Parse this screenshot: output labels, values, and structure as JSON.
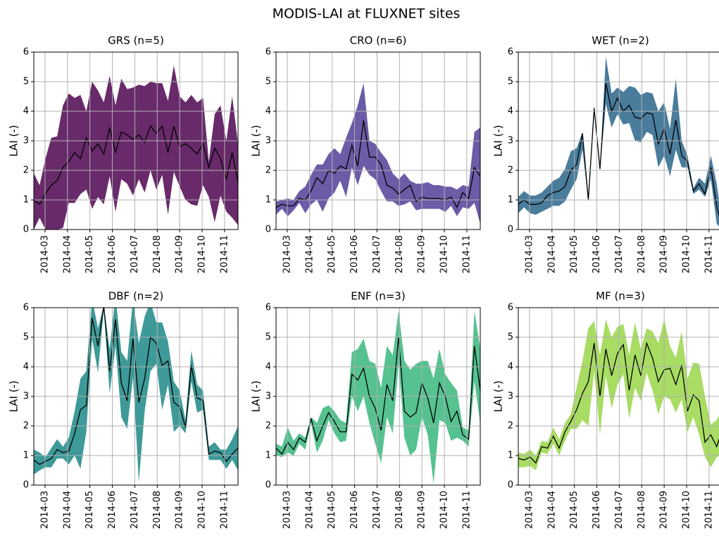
{
  "title": "MODIS-LAI at FLUXNET sites",
  "chart_data": [
    {
      "type": "line",
      "title": "GRS (n=5)",
      "y_label": "LAI (-)",
      "color": "#682a6a",
      "line_color": "#000000",
      "x": [
        2.5,
        2.76,
        3.02,
        3.28,
        3.54,
        3.8,
        4.06,
        4.32,
        4.58,
        4.84,
        5.1,
        5.36,
        5.62,
        5.88,
        6.14,
        6.4,
        6.66,
        6.92,
        7.18,
        7.44,
        7.7,
        7.96,
        8.22,
        8.48,
        8.74,
        9.0,
        9.26,
        9.52,
        9.78,
        10.04,
        10.3,
        10.56,
        10.82,
        11.08,
        11.34,
        11.6
      ],
      "mean": [
        1.0,
        0.85,
        1.2,
        1.5,
        1.65,
        2.1,
        2.3,
        2.6,
        2.4,
        3.1,
        2.65,
        2.9,
        2.55,
        3.45,
        2.6,
        3.3,
        3.2,
        3.05,
        3.2,
        2.95,
        3.5,
        3.25,
        3.5,
        2.6,
        3.5,
        2.8,
        2.9,
        2.75,
        2.55,
        2.9,
        2.1,
        2.75,
        2.4,
        1.7,
        2.6,
        1.6
      ],
      "upper": [
        1.9,
        1.5,
        2.4,
        3.1,
        3.15,
        4.2,
        4.6,
        4.45,
        4.55,
        4.0,
        5.0,
        4.7,
        4.3,
        5.2,
        4.2,
        5.1,
        4.75,
        4.8,
        4.9,
        4.85,
        5.0,
        4.95,
        4.95,
        4.35,
        5.55,
        4.5,
        4.3,
        4.55,
        4.3,
        4.45,
        2.3,
        3.9,
        4.2,
        3.0,
        4.5,
        2.9
      ],
      "lower": [
        0,
        0.4,
        0,
        -0.1,
        0,
        0.05,
        0.9,
        0.9,
        1.2,
        1.35,
        0.7,
        1.1,
        0.85,
        1.8,
        0.6,
        1.7,
        1.55,
        1.15,
        1.7,
        1.25,
        2.0,
        1.35,
        1.85,
        0.5,
        1.95,
        1.45,
        1.0,
        0.85,
        0.8,
        1.5,
        1.1,
        0.25,
        1.15,
        0.6,
        0.4,
        0.15
      ],
      "xlim": [
        2.5,
        11.6
      ],
      "ylim": [
        0,
        6
      ],
      "yticks": [
        0,
        1,
        2,
        3,
        4,
        5,
        6
      ],
      "xticks": [
        {
          "value": 3,
          "label": "2014-03"
        },
        {
          "value": 4,
          "label": "2014-04"
        },
        {
          "value": 5,
          "label": "2014-05"
        },
        {
          "value": 6,
          "label": "2014-06"
        },
        {
          "value": 7,
          "label": "2014-07"
        },
        {
          "value": 8,
          "label": "2014-08"
        },
        {
          "value": 9,
          "label": "2014-09"
        },
        {
          "value": 10,
          "label": "2014-10"
        },
        {
          "value": 11,
          "label": "2014-11"
        }
      ],
      "grid": true
    },
    {
      "type": "line",
      "title": "CRO (n=6)",
      "y_label": "LAI (-)",
      "color": "#6c5ba7",
      "line_color": "#000000",
      "x": [
        2.5,
        2.76,
        3.02,
        3.28,
        3.54,
        3.8,
        4.06,
        4.32,
        4.58,
        4.84,
        5.1,
        5.36,
        5.62,
        5.88,
        6.14,
        6.4,
        6.66,
        6.92,
        7.18,
        7.44,
        7.7,
        7.96,
        8.22,
        8.48,
        8.74,
        9.0,
        9.26,
        9.52,
        9.78,
        10.04,
        10.3,
        10.56,
        10.82,
        11.08,
        11.34,
        11.6
      ],
      "mean": [
        0.75,
        0.85,
        0.8,
        0.8,
        1.05,
        1.0,
        1.3,
        1.75,
        1.55,
        2.0,
        1.9,
        2.15,
        2.05,
        2.85,
        2.15,
        3.7,
        2.45,
        2.45,
        2.2,
        1.5,
        1.4,
        1.2,
        1.35,
        1.5,
        0.95,
        1.1,
        1.05,
        1.05,
        1.05,
        1.0,
        1.1,
        0.75,
        1.25,
        1.05,
        2.1,
        1.8
      ],
      "upper": [
        0.95,
        1.0,
        1.05,
        1.0,
        1.3,
        1.45,
        1.85,
        2.2,
        2.2,
        2.55,
        2.75,
        2.55,
        3.1,
        3.6,
        4.2,
        4.95,
        3.0,
        2.9,
        2.6,
        2.35,
        1.9,
        1.7,
        1.9,
        1.65,
        1.55,
        1.55,
        1.6,
        1.5,
        1.5,
        1.45,
        1.45,
        1.35,
        1.5,
        1.45,
        3.3,
        3.45
      ],
      "lower": [
        0.5,
        0.7,
        0.45,
        0.65,
        0.9,
        0.55,
        0.85,
        1.0,
        0.6,
        1.05,
        1.25,
        1.65,
        1.1,
        2.1,
        1.5,
        2.15,
        1.85,
        1.7,
        1.3,
        0.95,
        0.95,
        0.8,
        0.85,
        0.95,
        0.65,
        0.7,
        0.7,
        0.7,
        0.7,
        0.6,
        0.8,
        0.45,
        0.75,
        0.7,
        0.9,
        0.2
      ],
      "xlim": [
        2.5,
        11.6
      ],
      "ylim": [
        0,
        6
      ],
      "yticks": [
        0,
        1,
        2,
        3,
        4,
        5,
        6
      ],
      "xticks": [
        {
          "value": 3,
          "label": "2014-03"
        },
        {
          "value": 4,
          "label": "2014-04"
        },
        {
          "value": 5,
          "label": "2014-05"
        },
        {
          "value": 6,
          "label": "2014-06"
        },
        {
          "value": 7,
          "label": "2014-07"
        },
        {
          "value": 8,
          "label": "2014-08"
        },
        {
          "value": 9,
          "label": "2014-09"
        },
        {
          "value": 10,
          "label": "2014-10"
        },
        {
          "value": 11,
          "label": "2014-11"
        }
      ],
      "grid": true
    },
    {
      "type": "line",
      "title": "WET (n=2)",
      "y_label": "LAI (-)",
      "color": "#4a7c9c",
      "line_color": "#000000",
      "x": [
        2.5,
        2.76,
        3.02,
        3.28,
        3.54,
        3.8,
        4.06,
        4.32,
        4.58,
        4.84,
        5.1,
        5.36,
        5.62,
        5.88,
        6.14,
        6.4,
        6.66,
        6.92,
        7.18,
        7.44,
        7.7,
        7.96,
        8.22,
        8.48,
        8.74,
        9.0,
        9.26,
        9.52,
        9.78,
        10.04,
        10.3,
        10.56,
        10.82,
        11.08,
        11.34,
        11.6
      ],
      "mean": [
        0.85,
        1.0,
        0.85,
        0.85,
        0.9,
        1.15,
        1.25,
        1.3,
        1.45,
        2.0,
        2.2,
        3.25,
        1.0,
        4.1,
        2.05,
        4.95,
        4.0,
        4.45,
        4.0,
        4.2,
        3.8,
        3.75,
        3.95,
        3.9,
        2.9,
        3.4,
        2.55,
        3.7,
        2.5,
        2.3,
        1.3,
        1.55,
        1.2,
        2.1,
        0.8,
        0.05
      ],
      "upper": [
        1.1,
        1.3,
        1.15,
        1.15,
        1.25,
        1.45,
        1.65,
        1.75,
        2.05,
        2.65,
        2.75,
        3.3,
        1.05,
        4.2,
        2.1,
        5.85,
        4.6,
        4.8,
        4.65,
        4.85,
        4.8,
        4.55,
        4.65,
        4.6,
        4.0,
        4.3,
        3.4,
        5.1,
        3.0,
        2.5,
        1.4,
        1.75,
        1.55,
        2.5,
        1.55,
        0.15
      ],
      "lower": [
        0.55,
        0.75,
        0.55,
        0.5,
        0.6,
        0.7,
        0.8,
        0.8,
        0.95,
        1.35,
        1.7,
        2.7,
        0.95,
        4.0,
        2.0,
        4.25,
        3.45,
        3.9,
        3.55,
        3.6,
        3.0,
        2.95,
        3.3,
        3.2,
        2.1,
        2.5,
        1.8,
        2.7,
        2.1,
        2.1,
        1.2,
        1.35,
        1.1,
        1.7,
        0.2,
        -0.05
      ],
      "xlim": [
        2.5,
        11.6
      ],
      "ylim": [
        0,
        6
      ],
      "yticks": [
        0,
        1,
        2,
        3,
        4,
        5,
        6
      ],
      "xticks": [
        {
          "value": 3,
          "label": "2014-03"
        },
        {
          "value": 4,
          "label": "2014-04"
        },
        {
          "value": 5,
          "label": "2014-05"
        },
        {
          "value": 6,
          "label": "2014-06"
        },
        {
          "value": 7,
          "label": "2014-07"
        },
        {
          "value": 8,
          "label": "2014-08"
        },
        {
          "value": 9,
          "label": "2014-09"
        },
        {
          "value": 10,
          "label": "2014-10"
        },
        {
          "value": 11,
          "label": "2014-11"
        }
      ],
      "grid": true
    },
    {
      "type": "line",
      "title": "DBF (n=2)",
      "y_label": "LAI (-)",
      "color": "#3d9a98",
      "line_color": "#000000",
      "x": [
        2.5,
        2.76,
        3.02,
        3.28,
        3.54,
        3.8,
        4.06,
        4.32,
        4.58,
        4.84,
        5.1,
        5.36,
        5.62,
        5.88,
        6.14,
        6.4,
        6.66,
        6.92,
        7.18,
        7.44,
        7.7,
        7.96,
        8.22,
        8.48,
        8.74,
        9.0,
        9.26,
        9.52,
        9.78,
        10.04,
        10.3,
        10.56,
        10.82,
        11.08,
        11.34,
        11.6
      ],
      "mean": [
        0.85,
        0.7,
        0.8,
        0.9,
        1.2,
        1.1,
        1.15,
        1.75,
        2.55,
        2.7,
        5.65,
        4.7,
        6.05,
        3.85,
        5.6,
        3.45,
        2.85,
        4.95,
        2.8,
        3.6,
        5.0,
        4.8,
        4.05,
        4.2,
        2.8,
        2.65,
        1.95,
        4.05,
        2.95,
        2.85,
        1.05,
        1.15,
        1.1,
        0.8,
        1.05,
        1.25
      ],
      "upper": [
        1.2,
        1.1,
        0.95,
        1.25,
        1.55,
        1.3,
        1.6,
        2.5,
        3.6,
        3.85,
        6.3,
        5.3,
        6.1,
        4.6,
        6.4,
        4.5,
        4.2,
        6.3,
        4.8,
        5.7,
        6.2,
        5.5,
        5.5,
        4.85,
        3.5,
        3.2,
        2.2,
        4.55,
        3.4,
        3.2,
        1.3,
        1.45,
        1.2,
        1.2,
        1.55,
        2.0
      ],
      "lower": [
        0.35,
        0.5,
        0.6,
        0.6,
        0.9,
        0.9,
        0.7,
        1.0,
        0.55,
        1.8,
        4.95,
        3.8,
        5.95,
        3.1,
        4.7,
        2.3,
        1.9,
        3.65,
        0.1,
        2.5,
        3.85,
        4.1,
        2.55,
        3.4,
        1.8,
        2.0,
        1.75,
        3.5,
        2.45,
        2.55,
        0.85,
        0.85,
        0.85,
        0.55,
        0.85,
        0.5
      ],
      "xlim": [
        2.5,
        11.6
      ],
      "ylim": [
        0,
        6
      ],
      "yticks": [
        0,
        1,
        2,
        3,
        4,
        5,
        6
      ],
      "xticks": [
        {
          "value": 3,
          "label": "2014-03"
        },
        {
          "value": 4,
          "label": "2014-04"
        },
        {
          "value": 5,
          "label": "2014-05"
        },
        {
          "value": 6,
          "label": "2014-06"
        },
        {
          "value": 7,
          "label": "2014-07"
        },
        {
          "value": 8,
          "label": "2014-08"
        },
        {
          "value": 9,
          "label": "2014-09"
        },
        {
          "value": 10,
          "label": "2014-10"
        },
        {
          "value": 11,
          "label": "2014-11"
        }
      ],
      "grid": true
    },
    {
      "type": "line",
      "title": "ENF (n=3)",
      "y_label": "LAI (-)",
      "color": "#55c290",
      "line_color": "#000000",
      "x": [
        2.5,
        2.76,
        3.02,
        3.28,
        3.54,
        3.8,
        4.06,
        4.32,
        4.58,
        4.84,
        5.1,
        5.36,
        5.62,
        5.88,
        6.14,
        6.4,
        6.66,
        6.92,
        7.18,
        7.44,
        7.7,
        7.96,
        8.22,
        8.48,
        8.74,
        9.0,
        9.26,
        9.52,
        9.78,
        10.04,
        10.3,
        10.56,
        10.82,
        11.08,
        11.34,
        11.6
      ],
      "mean": [
        1.25,
        1.05,
        1.45,
        1.2,
        1.6,
        1.45,
        2.25,
        1.5,
        2.0,
        2.45,
        2.15,
        1.8,
        1.8,
        3.75,
        3.55,
        3.95,
        3.0,
        2.6,
        1.85,
        3.4,
        2.85,
        5.0,
        2.5,
        2.3,
        2.45,
        3.45,
        2.95,
        2.1,
        3.45,
        3.0,
        2.15,
        2.5,
        1.7,
        1.55,
        4.7,
        3.2
      ],
      "upper": [
        1.4,
        1.3,
        1.95,
        1.5,
        1.75,
        1.6,
        2.3,
        2.1,
        2.6,
        2.7,
        2.5,
        2.2,
        2.1,
        4.5,
        4.6,
        4.95,
        4.2,
        4.1,
        3.3,
        4.7,
        4.4,
        5.9,
        4.2,
        3.9,
        4.1,
        4.2,
        4.2,
        3.6,
        4.6,
        3.75,
        3.45,
        3.2,
        1.95,
        1.85,
        5.9,
        4.6
      ],
      "lower": [
        1.0,
        0.95,
        1.1,
        1.0,
        1.4,
        1.2,
        2.1,
        1.1,
        1.5,
        2.2,
        1.75,
        1.45,
        1.5,
        3.0,
        2.5,
        3.0,
        2.1,
        1.4,
        0.75,
        2.3,
        1.75,
        4.1,
        1.6,
        1.0,
        1.2,
        2.3,
        1.7,
        0.05,
        2.2,
        2.1,
        1.5,
        1.6,
        1.5,
        1.3,
        3.5,
        2.1
      ],
      "xlim": [
        2.5,
        11.6
      ],
      "ylim": [
        0,
        6
      ],
      "yticks": [
        0,
        1,
        2,
        3,
        4,
        5,
        6
      ],
      "xticks": [
        {
          "value": 3,
          "label": "2014-03"
        },
        {
          "value": 4,
          "label": "2014-04"
        },
        {
          "value": 5,
          "label": "2014-05"
        },
        {
          "value": 6,
          "label": "2014-06"
        },
        {
          "value": 7,
          "label": "2014-07"
        },
        {
          "value": 8,
          "label": "2014-08"
        },
        {
          "value": 9,
          "label": "2014-09"
        },
        {
          "value": 10,
          "label": "2014-10"
        },
        {
          "value": 11,
          "label": "2014-11"
        }
      ],
      "grid": true
    },
    {
      "type": "line",
      "title": "MF (n=3)",
      "y_label": "LAI (-)",
      "color": "#a8dc63",
      "line_color": "#000000",
      "x": [
        2.5,
        2.76,
        3.02,
        3.28,
        3.54,
        3.8,
        4.06,
        4.32,
        4.58,
        4.84,
        5.1,
        5.36,
        5.62,
        5.88,
        6.14,
        6.4,
        6.66,
        6.92,
        7.18,
        7.44,
        7.7,
        7.96,
        8.22,
        8.48,
        8.74,
        9.0,
        9.26,
        9.52,
        9.78,
        10.04,
        10.3,
        10.56,
        10.82,
        11.08,
        11.34,
        11.6
      ],
      "mean": [
        0.9,
        0.85,
        0.95,
        0.75,
        1.3,
        1.25,
        1.65,
        1.25,
        1.8,
        2.15,
        2.55,
        3.1,
        3.5,
        4.8,
        3.0,
        4.6,
        3.7,
        4.45,
        4.75,
        3.2,
        4.4,
        3.7,
        4.8,
        4.3,
        3.5,
        3.9,
        3.95,
        3.4,
        4.05,
        2.5,
        3.05,
        2.85,
        1.45,
        1.7,
        1.3,
        1.9
      ],
      "upper": [
        1.1,
        1.05,
        1.2,
        1.0,
        1.5,
        1.45,
        1.95,
        1.55,
        2.1,
        2.4,
        3.3,
        4.2,
        5.3,
        5.55,
        4.4,
        5.6,
        5.0,
        5.35,
        5.45,
        4.4,
        5.5,
        4.6,
        5.3,
        5.2,
        4.8,
        5.6,
        4.7,
        4.3,
        5.2,
        3.6,
        4.15,
        4.1,
        3.0,
        2.05,
        2.2,
        2.6
      ],
      "lower": [
        0.6,
        0.6,
        0.65,
        0.5,
        1.1,
        1.05,
        1.4,
        1.0,
        1.5,
        1.9,
        1.9,
        2.2,
        2.0,
        3.85,
        1.7,
        3.7,
        2.6,
        3.4,
        3.75,
        2.25,
        3.3,
        2.85,
        3.8,
        3.2,
        2.4,
        3.0,
        2.9,
        2.45,
        2.9,
        1.8,
        2.3,
        1.7,
        0.95,
        0.6,
        0.95,
        1.0
      ],
      "xlim": [
        2.5,
        11.6
      ],
      "ylim": [
        0,
        6
      ],
      "yticks": [
        0,
        1,
        2,
        3,
        4,
        5,
        6
      ],
      "xticks": [
        {
          "value": 3,
          "label": "2014-03"
        },
        {
          "value": 4,
          "label": "2014-04"
        },
        {
          "value": 5,
          "label": "2014-05"
        },
        {
          "value": 6,
          "label": "2014-06"
        },
        {
          "value": 7,
          "label": "2014-07"
        },
        {
          "value": 8,
          "label": "2014-08"
        },
        {
          "value": 9,
          "label": "2014-09"
        },
        {
          "value": 10,
          "label": "2014-10"
        },
        {
          "value": 11,
          "label": "2014-11"
        }
      ],
      "grid": true
    }
  ]
}
